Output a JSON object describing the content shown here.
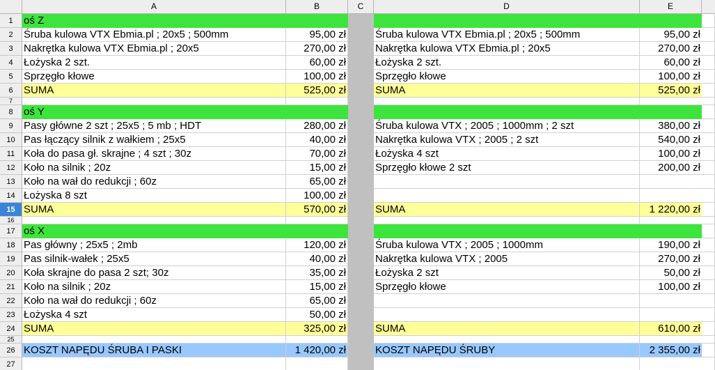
{
  "columns": [
    "A",
    "B",
    "C",
    "D",
    "E"
  ],
  "rows": [
    {
      "n": "1",
      "kind": "g",
      "a": "oś Z",
      "b": "",
      "d": "",
      "e": ""
    },
    {
      "n": "2",
      "kind": "",
      "a": "Śruba kulowa VTX Ebmia.pl ; 20x5 ; 500mm",
      "b": "95,00 zł",
      "d": "Śruba kulowa VTX Ebmia.pl ; 20x5 ; 500mm",
      "e": "95,00 zł"
    },
    {
      "n": "3",
      "kind": "",
      "a": "Nakrętka kulowa VTX Ebmia.pl ; 20x5",
      "b": "270,00 zł",
      "d": "Nakrętka kulowa VTX Ebmia.pl ; 20x5",
      "e": "270,00 zł"
    },
    {
      "n": "4",
      "kind": "",
      "a": "Łożyska 2 szt.",
      "b": "60,00 zł",
      "d": "Łożyska 2 szt.",
      "e": "60,00 zł"
    },
    {
      "n": "5",
      "kind": "",
      "a": "Sprzęgło kłowe",
      "b": "100,00 zł",
      "d": "Sprzęgło kłowe",
      "e": "100,00 zł"
    },
    {
      "n": "6",
      "kind": "y",
      "a": "SUMA",
      "b": "525,00 zł",
      "d": "SUMA",
      "e": "525,00 zł"
    },
    {
      "n": "7",
      "kind": "s",
      "a": "",
      "b": "",
      "d": "",
      "e": ""
    },
    {
      "n": "8",
      "kind": "g",
      "a": "oś Y",
      "b": "",
      "d": "",
      "e": ""
    },
    {
      "n": "9",
      "kind": "",
      "a": "Pasy główne 2 szt ; 25x5 ; 5 mb ; HDT",
      "b": "280,00 zł",
      "d": "Śruba kulowa VTX ; 2005 ; 1000mm ; 2 szt",
      "e": "380,00 zł"
    },
    {
      "n": "10",
      "kind": "",
      "a": "Pas łączący silnik z wałkiem ; 25x5",
      "b": "40,00 zł",
      "d": "Nakrętka kulowa VTX ; 2005 ; 2 szt",
      "e": "540,00 zł"
    },
    {
      "n": "11",
      "kind": "",
      "a": "Koła do pasa gł. skrajne ; 4 szt ; 30z",
      "b": "70,00 zł",
      "d": "Łożyska 4 szt",
      "e": "100,00 zł"
    },
    {
      "n": "12",
      "kind": "",
      "a": "Koło na silnik ; 20z",
      "b": "15,00 zł",
      "d": "Sprzęgło kłowe 2 szt",
      "e": "200,00 zł"
    },
    {
      "n": "13",
      "kind": "",
      "a": "Koło na wał do redukcji ; 60z",
      "b": "65,00 zł",
      "d": "",
      "e": ""
    },
    {
      "n": "14",
      "kind": "",
      "a": "Łożyska 8 szt",
      "b": "100,00 zł",
      "d": "",
      "e": ""
    },
    {
      "n": "15",
      "kind": "y",
      "sel": true,
      "a": "SUMA",
      "b": "570,00 zł",
      "d": "SUMA",
      "e": "1 220,00 zł"
    },
    {
      "n": "16",
      "kind": "s",
      "a": "",
      "b": "",
      "d": "",
      "e": ""
    },
    {
      "n": "17",
      "kind": "g",
      "a": "oś X",
      "b": "",
      "d": "",
      "e": ""
    },
    {
      "n": "18",
      "kind": "",
      "a": "Pas główny ; 25x5 ; 2mb",
      "b": "120,00 zł",
      "d": "Śruba kulowa VTX ; 2005 ; 1000mm",
      "e": "190,00 zł"
    },
    {
      "n": "19",
      "kind": "",
      "a": "Pas silnik-wałek ; 25x5",
      "b": "40,00 zł",
      "d": "Nakrętka kulowa VTX ; 2005",
      "e": "270,00 zł"
    },
    {
      "n": "20",
      "kind": "",
      "a": "Koła skrajne do pasa 2 szt; 30z",
      "b": "35,00 zł",
      "d": "Łożyska 2 szt",
      "e": "50,00 zł"
    },
    {
      "n": "21",
      "kind": "",
      "a": "Koło na silnik ; 20z",
      "b": "15,00 zł",
      "d": "Sprzęgło kłowe",
      "e": "100,00 zł"
    },
    {
      "n": "22",
      "kind": "",
      "a": "Koło na wał do redukcji ; 60z",
      "b": "65,00 zł",
      "d": "",
      "e": ""
    },
    {
      "n": "23",
      "kind": "",
      "a": "Łożyska 4 szt",
      "b": "50,00 zł",
      "d": "",
      "e": ""
    },
    {
      "n": "24",
      "kind": "y",
      "a": "SUMA",
      "b": "325,00 zł",
      "d": "SUMA",
      "e": "610,00 zł"
    },
    {
      "n": "25",
      "kind": "s",
      "a": "",
      "b": "",
      "d": "",
      "e": ""
    },
    {
      "n": "26",
      "kind": "b",
      "a": "KOSZT NAPĘDU ŚRUBA I PASKI",
      "b": "1 420,00 zł",
      "d": "KOSZT NAPĘDU ŚRUBY",
      "e": "2 355,00 zł"
    },
    {
      "n": "27",
      "kind": "",
      "a": "",
      "b": "",
      "d": "",
      "e": ""
    }
  ],
  "colors": {
    "section": "#3ee43e",
    "sum": "#ffff99",
    "total": "#99c8ff",
    "separator": "#c0c0c0",
    "selected_row": "#3a84d9"
  }
}
